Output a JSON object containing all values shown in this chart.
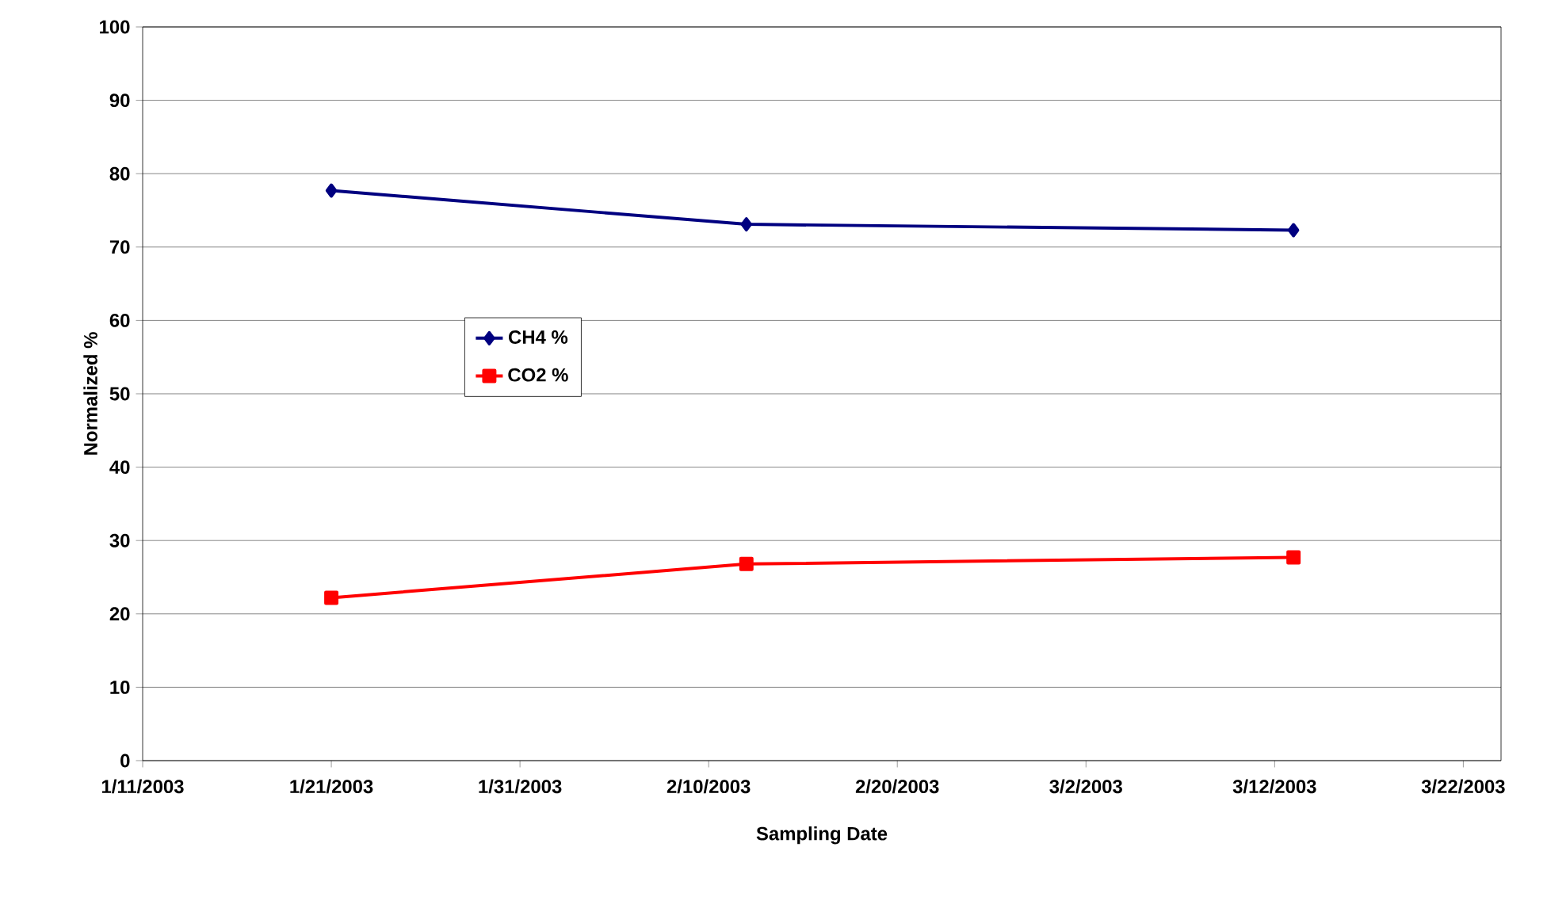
{
  "chart_data": {
    "type": "line",
    "xlabel": "Sampling Date",
    "ylabel": "Normalized %",
    "x": [
      "2003-01-21",
      "2003-02-12",
      "2003-03-13"
    ],
    "series": [
      {
        "name": "CH4 %",
        "color": "#000080",
        "marker": "diamond",
        "values": [
          77.7,
          73.1,
          72.3
        ]
      },
      {
        "name": "CO2 %",
        "color": "#ff0000",
        "marker": "square",
        "values": [
          22.2,
          26.8,
          27.7
        ]
      }
    ],
    "xlim": [
      "2003-01-11",
      "2003-03-24"
    ],
    "xticks": [
      {
        "value": "2003-01-11",
        "label": "1/11/2003"
      },
      {
        "value": "2003-01-21",
        "label": "1/21/2003"
      },
      {
        "value": "2003-01-31",
        "label": "1/31/2003"
      },
      {
        "value": "2003-02-10",
        "label": "2/10/2003"
      },
      {
        "value": "2003-02-20",
        "label": "2/20/2003"
      },
      {
        "value": "2003-03-02",
        "label": "3/2/2003"
      },
      {
        "value": "2003-03-12",
        "label": "3/12/2003"
      },
      {
        "value": "2003-03-22",
        "label": "3/22/2003"
      }
    ],
    "ylim": [
      0,
      100
    ],
    "yticks": [
      0,
      10,
      20,
      30,
      40,
      50,
      60,
      70,
      80,
      90,
      100
    ],
    "grid": "y",
    "legend": "left",
    "line_style": "solid"
  }
}
